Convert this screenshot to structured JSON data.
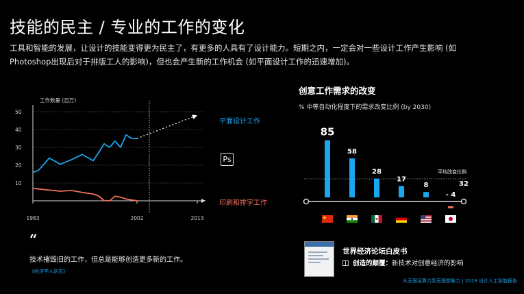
{
  "header": {
    "title": "技能的民主  /  专业的工作的变化",
    "intro_line1": "工具和智能的发展，让设计的技能变得更为民主了，有更多的人具有了设计能力。短期之内，一定会对一些设计工作产生影响 (如",
    "intro_line2": "Photoshop出现后对于排版工人的影响)，但也会产生新的工作机会 (如平面设计工作的迅速增加)。"
  },
  "left_chart": {
    "y_axis_label": "工作数量 (百万)",
    "blue_label": "平面设计工作",
    "red_label": "印刷和排字工作",
    "ps_icon_text": "Ps",
    "colors": {
      "blue": "#19a7f0",
      "red": "#f0705a"
    }
  },
  "quote": {
    "mark": "“",
    "text": "技术摧毁旧的工作，但总是能够创造更多新的工作。",
    "source": "《经济学人杂志》"
  },
  "right_panel": {
    "title": "创意工作需求的改变",
    "subtitle": "% 中等自动化程度下的需求改变比例 (by 2030)",
    "avg_label": "平均改变比例",
    "avg_value": "32"
  },
  "white_paper": {
    "title": "世界经济论坛白皮书",
    "sub_bold": "创造的颠覆：",
    "sub_rest": "新技术对创意经济的影响"
  },
  "footer": {
    "text": "从无限运算力到无限想象力 | 2019 设计人工智能报告"
  },
  "chart_data": [
    {
      "type": "line",
      "title": "",
      "ylabel": "工作数量 (百万)",
      "x_ticks": [
        "1983",
        "2002",
        "2013"
      ],
      "x_range": [
        1983,
        2013
      ],
      "y_ticks": [
        10,
        20,
        30,
        40,
        50
      ],
      "ylim": [
        0,
        50
      ],
      "grid": true,
      "series": [
        {
          "name": "平面设计工作",
          "color": "#19a7f0",
          "x": [
            1983,
            1984,
            1986,
            1988,
            1990,
            1992,
            1994,
            1995,
            1996,
            1997,
            1998,
            1999,
            2000,
            2001,
            2002
          ],
          "y": [
            16,
            17,
            24,
            20.5,
            23,
            26,
            22.5,
            27,
            32,
            30,
            33.5,
            30,
            37,
            35,
            35
          ]
        },
        {
          "name": "印刷和排字工作",
          "color": "#f0705a",
          "x": [
            1983,
            1985,
            1987,
            1988,
            1990,
            1992,
            1994,
            1995,
            1996,
            1997,
            1998,
            1999,
            2000,
            2002
          ],
          "y": [
            7,
            6.3,
            5.7,
            5.4,
            5.8,
            4.7,
            3.8,
            2.7,
            0.1,
            0,
            2.6,
            2,
            1,
            0
          ]
        },
        {
          "name": "",
          "style": "dotted-projection",
          "color": "#ffffff",
          "x": [
            2002,
            2013
          ],
          "y": [
            35,
            48
          ]
        }
      ]
    },
    {
      "type": "bar",
      "title": "创意工作需求的改变",
      "subtitle": "% 中等自动化程度下的需求改变比例 (by 2030)",
      "categories": [
        "China",
        "India",
        "Mexico",
        "Germany",
        "USA",
        "Japan"
      ],
      "values": [
        85,
        58,
        28,
        17,
        8,
        -4
      ],
      "value_labels": [
        "85",
        "58",
        "28",
        "17",
        "8",
        "- 4"
      ],
      "reference_line": {
        "label": "平均改变比例",
        "value": 32
      },
      "colors": {
        "positive": "#19a7f0",
        "negative": "#f0705a"
      }
    }
  ]
}
